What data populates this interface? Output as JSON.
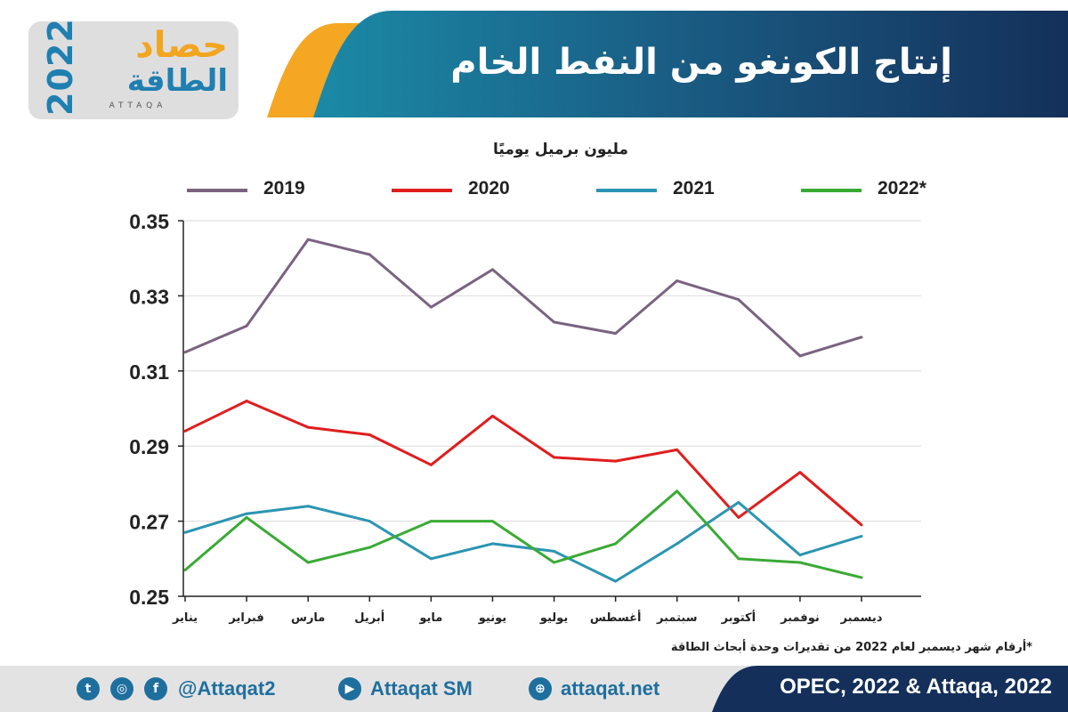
{
  "header": {
    "title": "إنتاج الكونغو من النفط الخام",
    "logo": {
      "top": "حصاد",
      "bottom": "الطاقة",
      "year": "2022",
      "sub": "ATTAQA"
    }
  },
  "colors": {
    "navy": "#14305a",
    "teal": "#1b8aa6",
    "orange": "#f5a623",
    "series_2019": "#7a6380",
    "series_2020": "#e01d1d",
    "series_2021": "#2a95b2",
    "series_2022": "#3aaa35"
  },
  "chart_data": {
    "type": "line",
    "title": "",
    "ylabel": "مليون برميل يوميًا",
    "xlabel": "",
    "categories": [
      "يناير",
      "فبراير",
      "مارس",
      "أبريل",
      "مايو",
      "يونيو",
      "يوليو",
      "أغسطس",
      "سبتمبر",
      "أكتوبر",
      "نوفمبر",
      "ديسمبر"
    ],
    "ylim": [
      0.25,
      0.35
    ],
    "yticks": [
      0.25,
      0.27,
      0.29,
      0.31,
      0.33,
      0.35
    ],
    "ytick_labels": [
      "0.25",
      "0.27",
      "0.29",
      "0.31",
      "0.33",
      "0.35"
    ],
    "grid": true,
    "legend_position": "top",
    "series": [
      {
        "name": "2019",
        "color": "#7a6380",
        "values": [
          0.315,
          0.322,
          0.345,
          0.341,
          0.327,
          0.337,
          0.323,
          0.32,
          0.334,
          0.329,
          0.314,
          0.319
        ]
      },
      {
        "name": "2020",
        "color": "#e01d1d",
        "values": [
          0.294,
          0.302,
          0.295,
          0.293,
          0.285,
          0.298,
          0.287,
          0.286,
          0.289,
          0.271,
          0.283,
          0.269
        ]
      },
      {
        "name": "2021",
        "color": "#2a95b2",
        "values": [
          0.267,
          0.272,
          0.274,
          0.27,
          0.26,
          0.264,
          0.262,
          0.254,
          0.264,
          0.275,
          0.261,
          0.266
        ]
      },
      {
        "name": "2022*",
        "color": "#3aaa35",
        "values": [
          0.257,
          0.271,
          0.259,
          0.263,
          0.27,
          0.27,
          0.259,
          0.264,
          0.278,
          0.26,
          0.259,
          0.255
        ]
      }
    ]
  },
  "footnote": "*أرقام شهر ديسمبر لعام 2022 من تقديرات وحدة أبحاث الطاقة",
  "footer": {
    "twitter": "@Attaqat2",
    "youtube": "Attaqat SM",
    "website": "attaqat.net",
    "source": "OPEC, 2022 & Attaqa, 2022",
    "icons": [
      "twitter-icon",
      "instagram-icon",
      "facebook-icon",
      "youtube-icon",
      "web-icon"
    ]
  }
}
